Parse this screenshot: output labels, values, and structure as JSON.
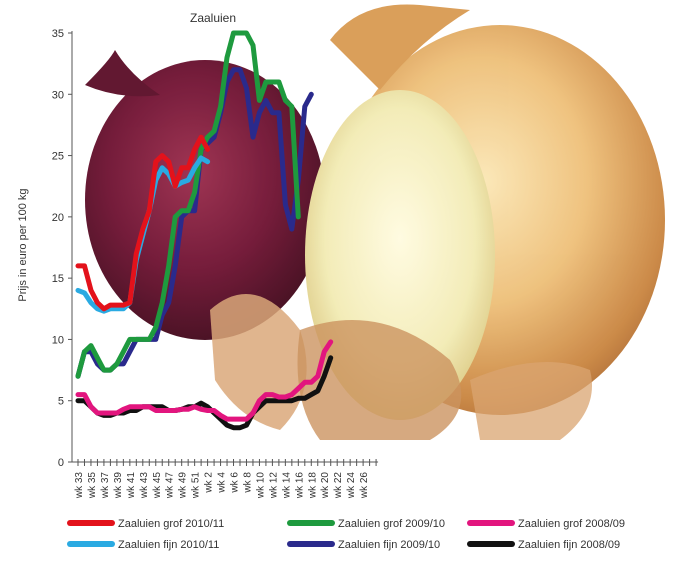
{
  "chart_data": {
    "type": "line",
    "title": "Zaaluien",
    "xlabel": "",
    "ylabel": "Prijs in euro per 100 kg",
    "ylim": [
      0,
      35
    ],
    "y_ticks": [
      0,
      5,
      10,
      15,
      20,
      25,
      30,
      35
    ],
    "x_tick_labels": [
      "wk 33",
      "wk 35",
      "wk 37",
      "wk 39",
      "wk 41",
      "wk 43",
      "wk 45",
      "wk 47",
      "wk 49",
      "wk 51",
      "wk 2",
      "wk 4",
      "wk 6",
      "wk 8",
      "wk 10",
      "wk 12",
      "wk 14",
      "wk 16",
      "wk 18",
      "wk 20",
      "wk 22",
      "wk 24",
      "wk 26"
    ],
    "grid": false,
    "legend_position": "bottom",
    "background_image": "onions-photo",
    "series": [
      {
        "name": "Zaaluien grof 2010/11",
        "color": "#e3121b",
        "values": [
          16,
          16,
          14,
          13,
          12.5,
          12.8,
          12.8,
          12.8,
          13,
          17,
          19,
          20.5,
          24.5,
          25,
          24.5,
          22.5,
          24,
          24,
          25.5,
          26.5,
          25.5,
          null,
          null,
          null,
          null,
          null,
          null,
          null,
          null,
          null,
          null,
          null,
          null,
          null,
          null,
          null,
          null,
          null,
          null,
          null,
          null,
          null,
          null,
          null,
          null,
          null,
          null
        ]
      },
      {
        "name": "Zaaluien fijn 2010/11",
        "color": "#2aaae2",
        "values": [
          14,
          13.8,
          13,
          12.5,
          12.3,
          12.5,
          12.5,
          12.5,
          13,
          16.5,
          18.5,
          20.5,
          23,
          24,
          23.5,
          22.5,
          22.8,
          23,
          24,
          24.8,
          24.5,
          null,
          null,
          null,
          null,
          null,
          null,
          null,
          null,
          null,
          null,
          null,
          null,
          null,
          null,
          null,
          null,
          null,
          null,
          null,
          null,
          null,
          null,
          null,
          null,
          null,
          null
        ]
      },
      {
        "name": "Zaaluien grof 2009/10",
        "color": "#1e9a3e",
        "values": [
          7,
          9,
          9.5,
          8.5,
          7.5,
          7.5,
          8,
          9,
          10,
          10,
          10,
          10,
          11,
          13,
          16,
          20,
          20.5,
          20.5,
          22,
          25.5,
          26.5,
          27,
          29,
          33,
          35,
          35,
          35,
          34,
          29.5,
          31,
          31,
          31,
          29.5,
          29,
          20,
          null,
          null,
          null,
          null,
          null,
          null,
          null,
          null,
          null,
          null,
          null,
          null
        ]
      },
      {
        "name": "Zaaluien fijn 2009/10",
        "color": "#2a2a8c",
        "values": [
          7,
          9,
          9,
          8,
          7.5,
          7.5,
          8,
          8,
          9,
          10,
          10,
          10,
          10,
          12,
          13,
          16,
          20,
          20.5,
          20.5,
          25.5,
          26,
          26.5,
          28.5,
          31,
          32,
          32,
          30.5,
          26.5,
          28.5,
          29.5,
          28.5,
          28.5,
          21,
          19,
          23,
          29,
          30,
          null,
          null,
          null,
          null,
          null,
          null,
          null,
          null,
          null,
          null
        ]
      },
      {
        "name": "Zaaluien grof 2008/09",
        "color": "#e2157e",
        "values": [
          5.5,
          5.5,
          4.5,
          4,
          4,
          4,
          4,
          4.3,
          4.5,
          4.5,
          4.5,
          4.5,
          4.2,
          4.2,
          4.2,
          4.2,
          4.3,
          4.3,
          4.5,
          4.3,
          4.2,
          4.2,
          3.8,
          3.5,
          3.5,
          3.5,
          3.5,
          4,
          5,
          5.5,
          5.5,
          5.3,
          5.3,
          5.5,
          6,
          6.5,
          6.5,
          7,
          9,
          9.8,
          null,
          null,
          null,
          null,
          null,
          null,
          null
        ]
      },
      {
        "name": "Zaaluien fijn 2008/09",
        "color": "#111111",
        "values": [
          5,
          5,
          4.5,
          4,
          3.8,
          3.8,
          4,
          4,
          4.2,
          4.2,
          4.5,
          4.5,
          4.5,
          4.5,
          4.2,
          4.2,
          4.3,
          4.5,
          4.5,
          4.8,
          4.5,
          4,
          3.5,
          3,
          2.8,
          2.8,
          3,
          4,
          4.5,
          5,
          5,
          5,
          5,
          5,
          5.2,
          5.2,
          5.5,
          5.8,
          7,
          8.5,
          null,
          null,
          null,
          null,
          null,
          null,
          null
        ]
      }
    ]
  }
}
